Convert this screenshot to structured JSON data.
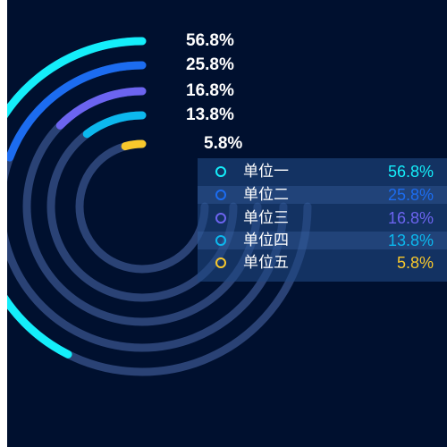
{
  "chart_data": {
    "type": "radial-bar",
    "series": [
      {
        "name": "单位一",
        "value": 56.8,
        "label": "56.8%",
        "legend_value": "56.8%",
        "color": "#14eefa"
      },
      {
        "name": "单位二",
        "value": 25.8,
        "label": "25.8%",
        "legend_value": "25.8%",
        "color": "#1c6cf0"
      },
      {
        "name": "单位三",
        "value": 16.8,
        "label": "16.8%",
        "legend_value": "16.8%",
        "color": "#6c64f0"
      },
      {
        "name": "单位四",
        "value": 13.8,
        "label": "13.8%",
        "legend_value": "13.8%",
        "color": "#0cb8ee"
      },
      {
        "name": "单位五",
        "value": 5.8,
        "label": "5.8%",
        "legend_value": "5.8%",
        "color": "#f8c82c"
      }
    ],
    "max": 100,
    "track_color": "#2a4275",
    "background": "#00102f",
    "legend_placement": "right"
  }
}
